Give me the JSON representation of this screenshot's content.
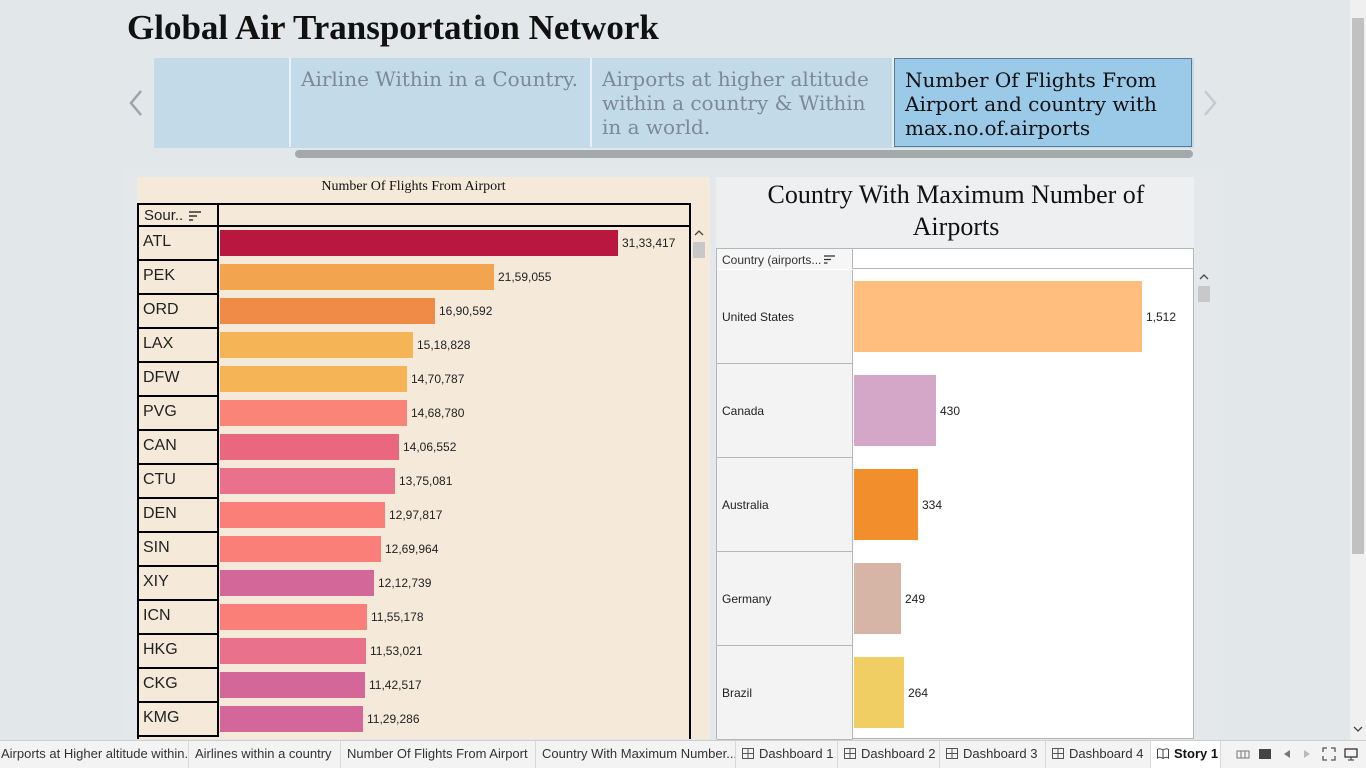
{
  "story": {
    "title": "Global Air Transportation Network",
    "points": [
      {
        "text": ""
      },
      {
        "text": "Airline Within in a Country."
      },
      {
        "text": "Airports at higher altitude within a country & Within in a world."
      },
      {
        "text": "Number Of Flights From Airport  and country with max.no.of.airports"
      }
    ],
    "active_point": 3
  },
  "left_sheet": {
    "title": "Number Of Flights From Airport",
    "header": "Sour..",
    "chart_data": {
      "type": "bar",
      "categories": [
        "ATL",
        "PEK",
        "ORD",
        "LAX",
        "DFW",
        "PVG",
        "CAN",
        "CTU",
        "DEN",
        "SIN",
        "XIY",
        "ICN",
        "HKG",
        "CKG",
        "KMG"
      ],
      "values": [
        3133417,
        2159055,
        1690592,
        1518828,
        1470787,
        1468780,
        1406552,
        1375081,
        1297817,
        1269964,
        1212739,
        1155178,
        1153021,
        1142517,
        1129286
      ],
      "labels": [
        "31,33,417",
        "21,59,055",
        "16,90,592",
        "15,18,828",
        "14,70,787",
        "14,68,780",
        "14,06,552",
        "13,75,081",
        "12,97,817",
        "12,69,964",
        "12,12,739",
        "11,55,178",
        "11,53,021",
        "11,42,517",
        "11,29,286"
      ],
      "colors": [
        "#b9173f",
        "#f2a44f",
        "#ef8a47",
        "#f5b556",
        "#f5b556",
        "#fb8478",
        "#e9687f",
        "#e9718c",
        "#fb7f79",
        "#fb7f79",
        "#d4679a",
        "#fb7f79",
        "#e9718c",
        "#d4679a",
        "#d4679a"
      ],
      "xlim": [
        0,
        3133417
      ]
    }
  },
  "right_sheet": {
    "title": "Country With Maximum Number of Airports",
    "header": "Country (airports...",
    "chart_data": {
      "type": "bar",
      "categories": [
        "United States",
        "Canada",
        "Australia",
        "Germany",
        "Brazil"
      ],
      "values": [
        1512,
        430,
        334,
        249,
        264
      ],
      "labels": [
        "1,512",
        "430",
        "334",
        "249",
        "264"
      ],
      "colors": [
        "#ffbe7d",
        "#d4a6c8",
        "#f28e2b",
        "#d7b5a6",
        "#f1ce63"
      ],
      "xlim": [
        0,
        1512
      ]
    }
  },
  "tabs": [
    {
      "label": "Airports at Higher altitude within...",
      "icon": "",
      "active": false
    },
    {
      "label": "Airlines within a country",
      "icon": "",
      "active": false
    },
    {
      "label": "Number Of Flights From Airport",
      "icon": "",
      "active": false
    },
    {
      "label": "Country With Maximum Number...",
      "icon": "",
      "active": false
    },
    {
      "label": "Dashboard 1",
      "icon": "dashboard-icon",
      "active": false
    },
    {
      "label": "Dashboard 2",
      "icon": "dashboard-icon",
      "active": false
    },
    {
      "label": "Dashboard 3",
      "icon": "dashboard-icon",
      "active": false
    },
    {
      "label": "Dashboard 4",
      "icon": "dashboard-icon",
      "active": false
    },
    {
      "label": "Story 1",
      "icon": "story-icon",
      "active": true
    }
  ]
}
